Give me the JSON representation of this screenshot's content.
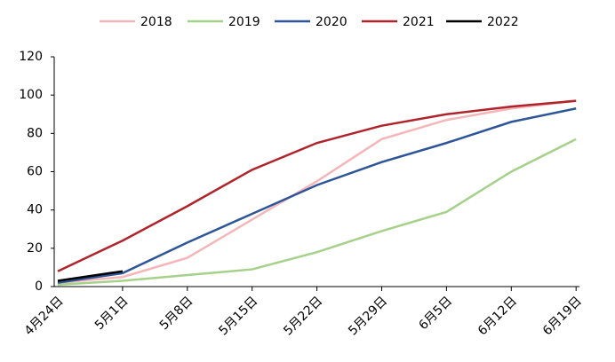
{
  "chart_data": {
    "type": "line",
    "categories": [
      "4月24日",
      "5月1日",
      "5月8日",
      "5月15日",
      "5月22日",
      "5月29日",
      "6月5日",
      "6月12日",
      "6月19日"
    ],
    "series": [
      {
        "name": "2018",
        "color": "#f4b6b8",
        "values": [
          2,
          5,
          15,
          35,
          55,
          77,
          87,
          93,
          97
        ]
      },
      {
        "name": "2019",
        "color": "#a5d18a",
        "values": [
          1,
          3,
          6,
          9,
          18,
          29,
          39,
          60,
          77
        ]
      },
      {
        "name": "2020",
        "color": "#2e5597",
        "values": [
          2,
          7,
          23,
          38,
          53,
          65,
          75,
          86,
          93
        ]
      },
      {
        "name": "2021",
        "color": "#b0232a",
        "values": [
          8,
          24,
          42,
          61,
          75,
          84,
          90,
          94,
          97
        ]
      },
      {
        "name": "2022",
        "color": "#000000",
        "values": [
          3,
          8,
          null,
          null,
          null,
          null,
          null,
          null,
          null
        ]
      }
    ],
    "ylim": [
      0,
      120
    ],
    "yticks": [
      0,
      20,
      40,
      60,
      80,
      100,
      120
    ],
    "legend": "top"
  }
}
